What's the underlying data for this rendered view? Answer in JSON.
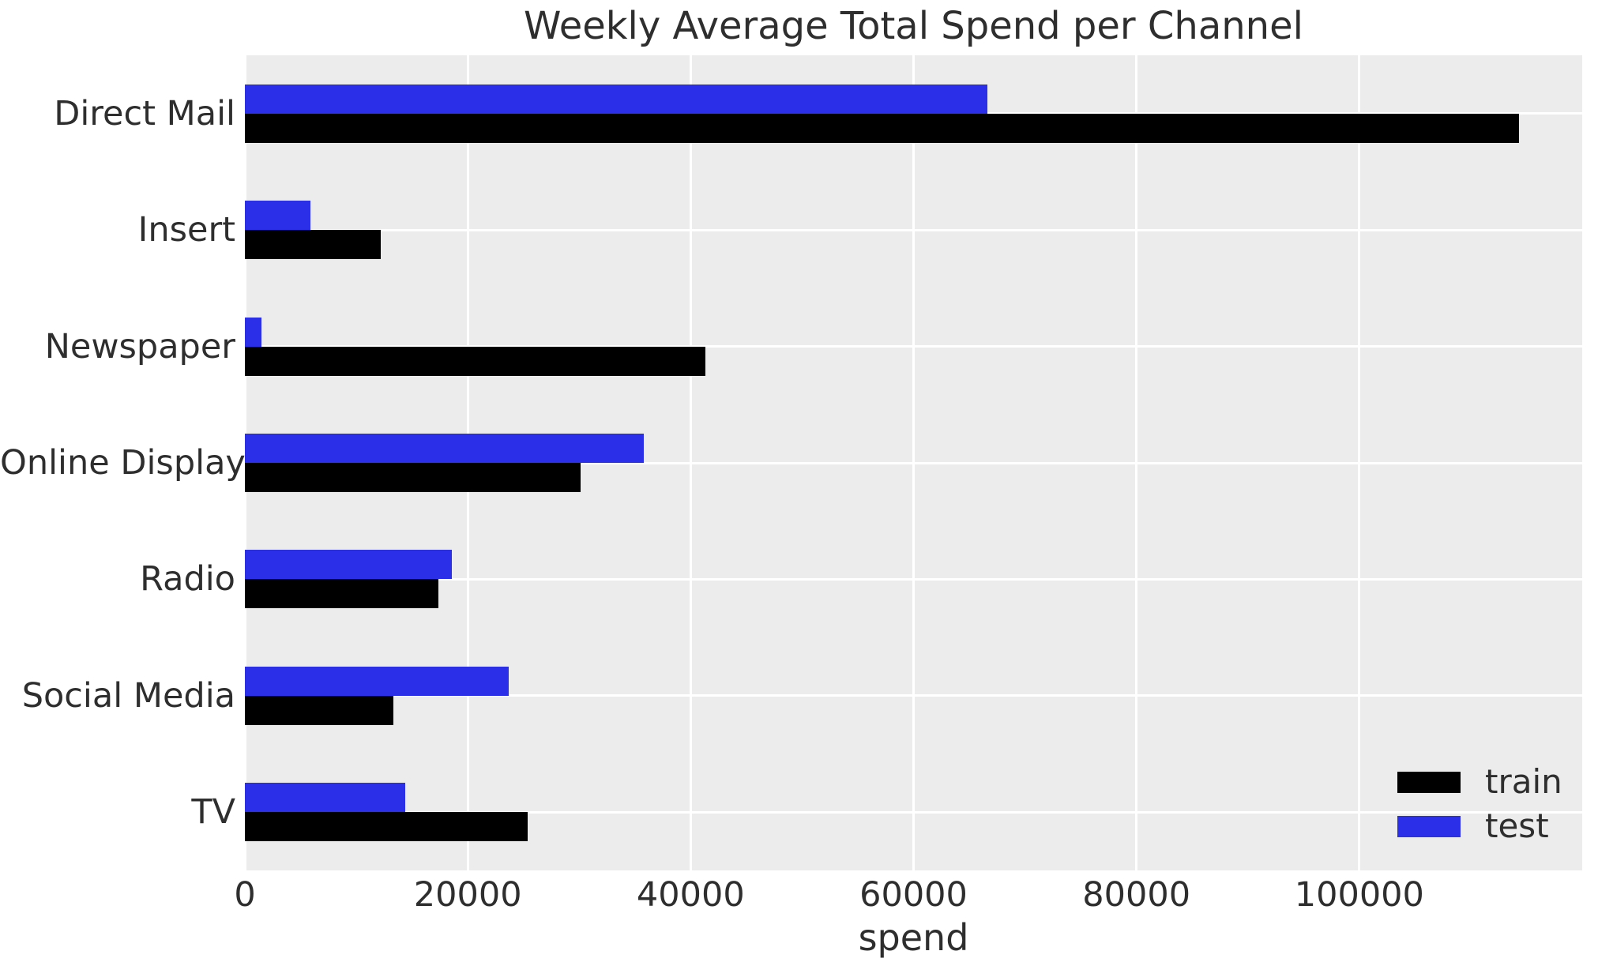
{
  "title": "Weekly Average Total Spend per Channel",
  "axes": {
    "xlabel": "spend",
    "x_tick_labels": [
      "0",
      "20000",
      "40000",
      "60000",
      "80000",
      "100000"
    ]
  },
  "legend": {
    "items": [
      {
        "label": "train",
        "color": "#000000"
      },
      {
        "label": "test",
        "color": "#2b2fe8"
      }
    ]
  },
  "colors": {
    "figure_background": "#ffffff",
    "plot_background": "#ececec",
    "grid": "#ffffff",
    "train_bar": "#000000",
    "test_bar": "#2b2fe8",
    "text": "#2e2e2e"
  },
  "chart_data": {
    "type": "bar",
    "orientation": "horizontal",
    "title": "Weekly Average Total Spend per Channel",
    "xlabel": "spend",
    "ylabel": "",
    "xlim": [
      0,
      120000
    ],
    "x_ticks": [
      0,
      20000,
      40000,
      60000,
      80000,
      100000
    ],
    "grid": true,
    "legend_position": "lower right",
    "categories": [
      "Direct Mail",
      "Insert",
      "Newspaper",
      "Online Display",
      "Radio",
      "Social Media",
      "TV"
    ],
    "series": [
      {
        "name": "train",
        "color": "#000000",
        "values": [
          114300,
          12200,
          41300,
          30100,
          17400,
          13300,
          25400
        ]
      },
      {
        "name": "test",
        "color": "#2b2fe8",
        "values": [
          66600,
          5900,
          1500,
          35800,
          18600,
          23700,
          14400
        ]
      }
    ]
  }
}
